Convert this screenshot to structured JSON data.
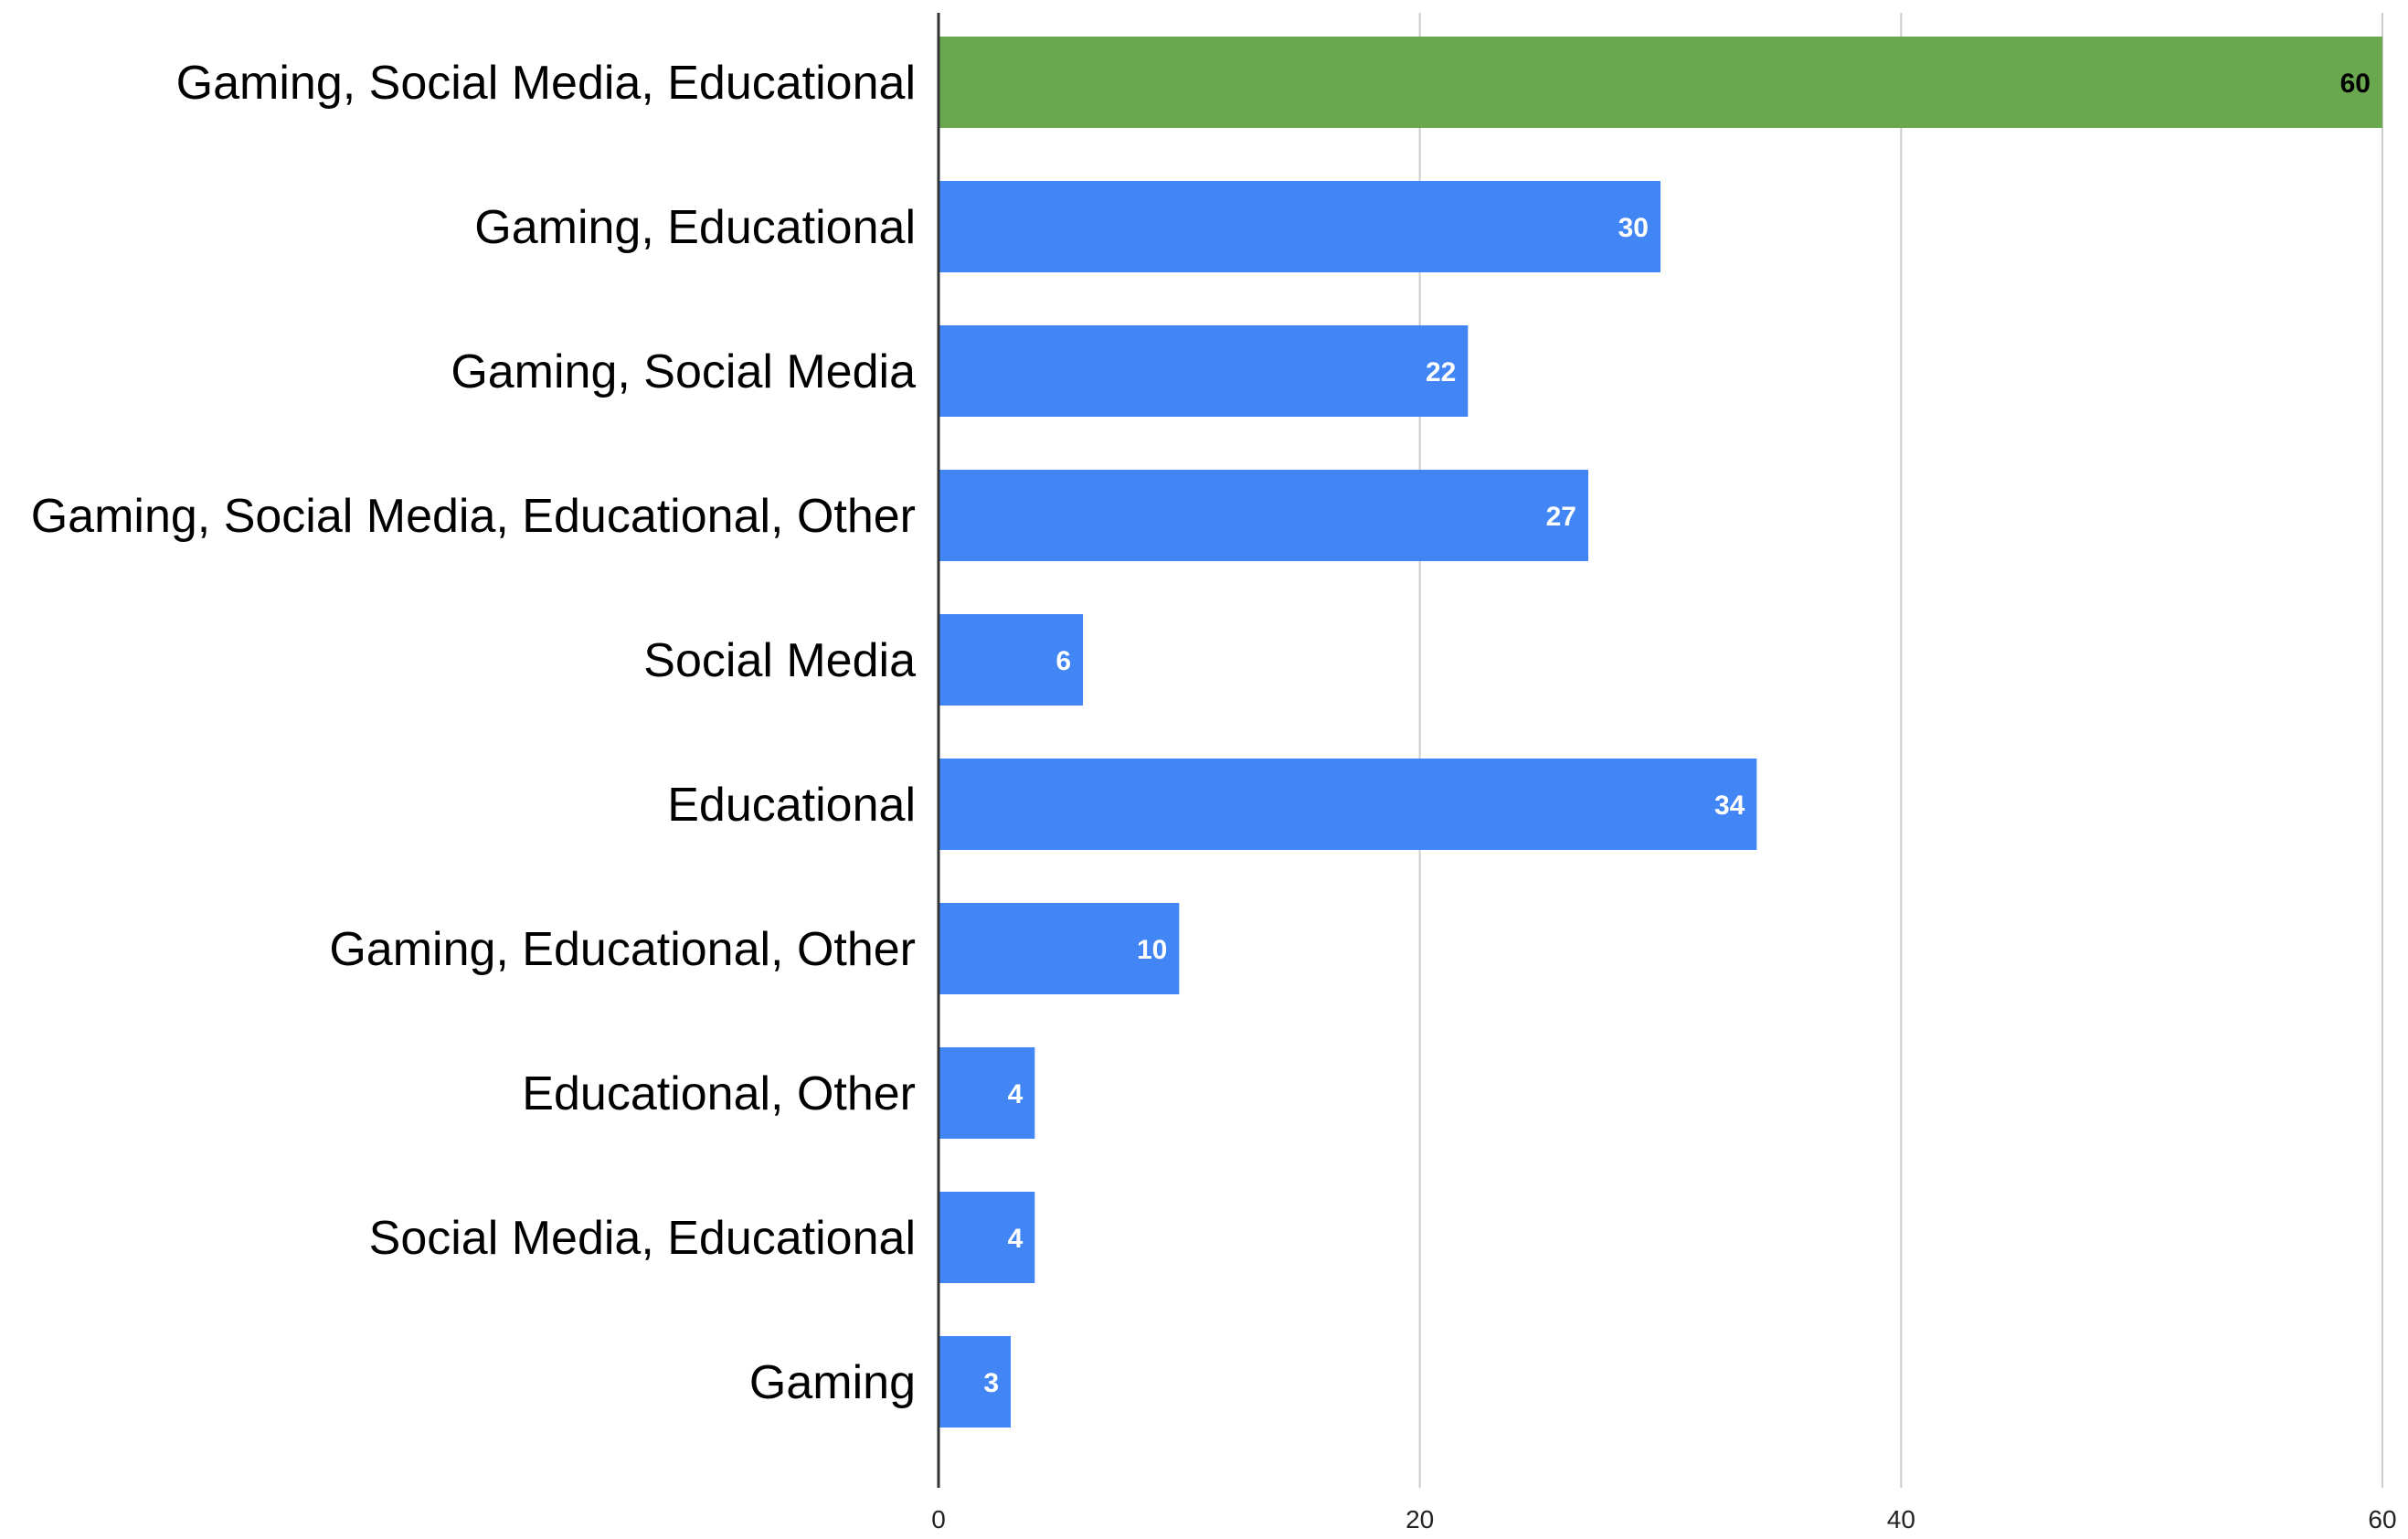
{
  "chart_data": {
    "type": "bar",
    "orientation": "horizontal",
    "title": "",
    "xlabel": "",
    "ylabel": "",
    "categories": [
      "Gaming, Social Media, Educational",
      "Gaming, Educational",
      "Gaming, Social Media",
      "Gaming, Social Media, Educational, Other",
      "Social Media",
      "Educational",
      "Gaming, Educational, Other",
      "Educational, Other",
      "Social Media, Educational",
      "Gaming"
    ],
    "values": [
      60,
      30,
      22,
      27,
      6,
      34,
      10,
      4,
      4,
      3
    ],
    "xlim": [
      0,
      60
    ],
    "xticks": [
      0,
      20,
      40,
      60
    ],
    "grid": true,
    "legend": "none",
    "highlight_index": 0,
    "colors": {
      "bar": "#4285f4",
      "highlight": "#6aa84f",
      "label_on_bar": "#ffffff",
      "label_on_highlight": "#000000",
      "grid": "#cccccc",
      "axis": "#333333"
    }
  }
}
